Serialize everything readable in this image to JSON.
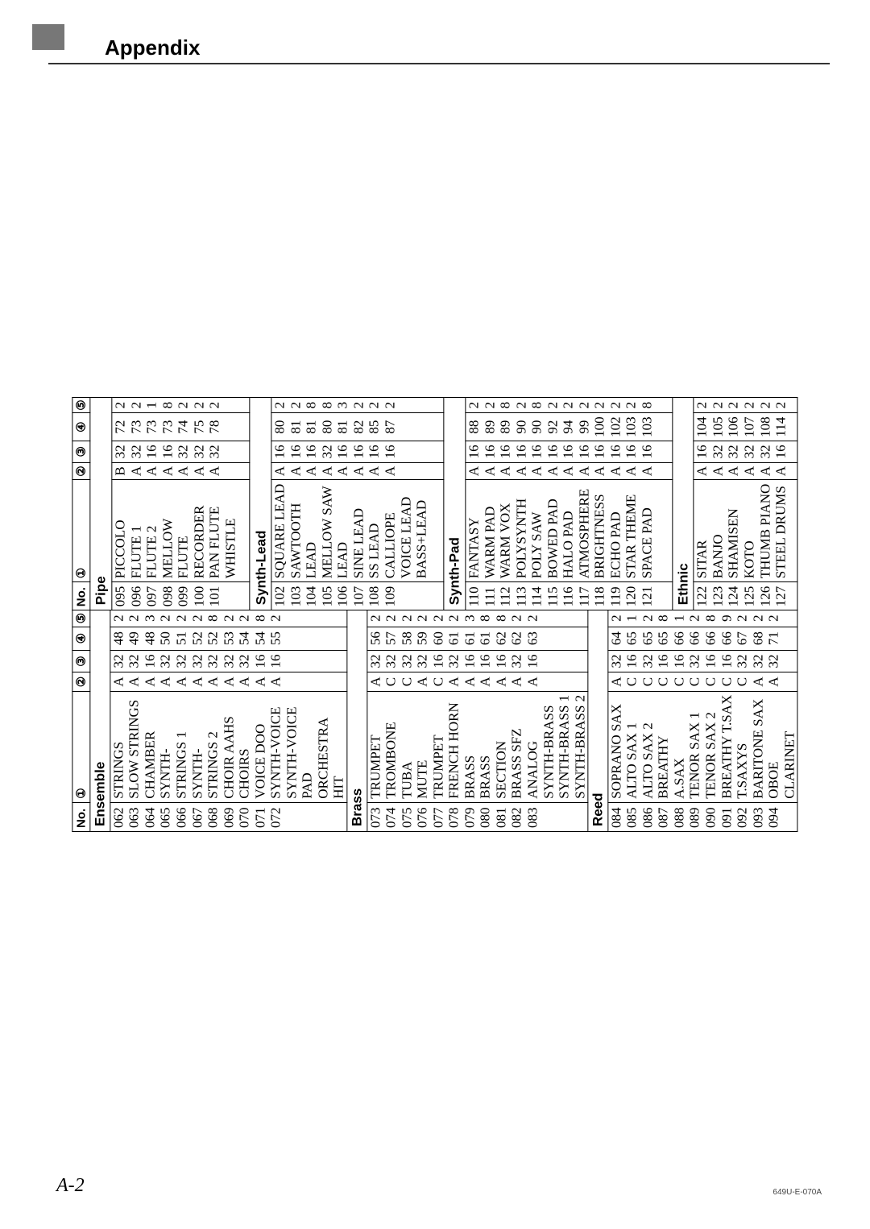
{
  "page_label": "A-2",
  "section_title": "Appendix",
  "footer_code": "649U-E-070A",
  "columns": {
    "no": "No.",
    "c1": "①",
    "c2": "②",
    "c3": "③",
    "c4": "④",
    "c5": "⑤"
  },
  "left_groups": [
    {
      "name": "Ensemble",
      "rows": [
        {
          "no": "062",
          "name": "STRINGS",
          "c2": "A",
          "c3": "32",
          "c4": "48",
          "c5": "2"
        },
        {
          "no": "063",
          "name": "SLOW STRINGS",
          "c2": "A",
          "c3": "32",
          "c4": "49",
          "c5": "2"
        },
        {
          "no": "064",
          "name": "CHAMBER",
          "c2": "A",
          "c3": "16",
          "c4": "48",
          "c5": "3"
        },
        {
          "no": "065",
          "name": "SYNTH-STRINGS 1",
          "c2": "A",
          "c3": "32",
          "c4": "50",
          "c5": "2"
        },
        {
          "no": "066",
          "name": "SYNTH-STRINGS 2",
          "c2": "A",
          "c3": "32",
          "c4": "51",
          "c5": "2"
        },
        {
          "no": "067",
          "name": "CHOIR AAHS",
          "c2": "A",
          "c3": "32",
          "c4": "52",
          "c5": "2"
        },
        {
          "no": "068",
          "name": "CHOIRS",
          "c2": "A",
          "c3": "32",
          "c4": "52",
          "c5": "8"
        },
        {
          "no": "069",
          "name": "VOICE DOO",
          "c2": "A",
          "c3": "32",
          "c4": "53",
          "c5": "2"
        },
        {
          "no": "070",
          "name": "SYNTH-VOICE",
          "c2": "A",
          "c3": "32",
          "c4": "54",
          "c5": "2"
        },
        {
          "no": "071",
          "name": "SYNTH-VOICE PAD",
          "c2": "A",
          "c3": "16",
          "c4": "54",
          "c5": "8"
        },
        {
          "no": "072",
          "name": "ORCHESTRA HIT",
          "c2": "A",
          "c3": "16",
          "c4": "55",
          "c5": "2"
        }
      ]
    },
    {
      "name": "Brass",
      "rows": [
        {
          "no": "073",
          "name": "TRUMPET",
          "c2": "A",
          "c3": "32",
          "c4": "56",
          "c5": "2"
        },
        {
          "no": "074",
          "name": "TROMBONE",
          "c2": "C",
          "c3": "32",
          "c4": "57",
          "c5": "2"
        },
        {
          "no": "075",
          "name": "TUBA",
          "c2": "C",
          "c3": "32",
          "c4": "58",
          "c5": "2"
        },
        {
          "no": "076",
          "name": "MUTE TRUMPET",
          "c2": "A",
          "c3": "32",
          "c4": "59",
          "c5": "2"
        },
        {
          "no": "077",
          "name": "FRENCH HORN",
          "c2": "C",
          "c3": "16",
          "c4": "60",
          "c5": "2"
        },
        {
          "no": "078",
          "name": "BRASS",
          "c2": "A",
          "c3": "32",
          "c4": "61",
          "c5": "2"
        },
        {
          "no": "079",
          "name": "BRASS SECTION",
          "c2": "A",
          "c3": "16",
          "c4": "61",
          "c5": "3"
        },
        {
          "no": "080",
          "name": "BRASS SFZ",
          "c2": "A",
          "c3": "16",
          "c4": "61",
          "c5": "8"
        },
        {
          "no": "081",
          "name": "ANALOG SYNTH-BRASS",
          "c2": "A",
          "c3": "16",
          "c4": "62",
          "c5": "8"
        },
        {
          "no": "082",
          "name": "SYNTH-BRASS 1",
          "c2": "A",
          "c3": "32",
          "c4": "62",
          "c5": "2"
        },
        {
          "no": "083",
          "name": "SYNTH-BRASS 2",
          "c2": "A",
          "c3": "16",
          "c4": "63",
          "c5": "2"
        }
      ]
    },
    {
      "name": "Reed",
      "rows": [
        {
          "no": "084",
          "name": "SOPRANO SAX",
          "c2": "A",
          "c3": "32",
          "c4": "64",
          "c5": "2"
        },
        {
          "no": "085",
          "name": "ALTO SAX 1",
          "c2": "C",
          "c3": "16",
          "c4": "65",
          "c5": "1"
        },
        {
          "no": "086",
          "name": "ALTO SAX 2",
          "c2": "C",
          "c3": "32",
          "c4": "65",
          "c5": "2"
        },
        {
          "no": "087",
          "name": "BREATHY A.SAX",
          "c2": "C",
          "c3": "16",
          "c4": "65",
          "c5": "8"
        },
        {
          "no": "088",
          "name": "TENOR SAX 1",
          "c2": "C",
          "c3": "16",
          "c4": "66",
          "c5": "1"
        },
        {
          "no": "089",
          "name": "TENOR SAX 2",
          "c2": "C",
          "c3": "32",
          "c4": "66",
          "c5": "2"
        },
        {
          "no": "090",
          "name": "BREATHY T.SAX",
          "c2": "C",
          "c3": "16",
          "c4": "66",
          "c5": "8"
        },
        {
          "no": "091",
          "name": "T.SAXYS",
          "c2": "C",
          "c3": "16",
          "c4": "66",
          "c5": "9"
        },
        {
          "no": "092",
          "name": "BARITONE SAX",
          "c2": "C",
          "c3": "32",
          "c4": "67",
          "c5": "2"
        },
        {
          "no": "093",
          "name": "OBOE",
          "c2": "A",
          "c3": "32",
          "c4": "68",
          "c5": "2"
        },
        {
          "no": "094",
          "name": "CLARINET",
          "c2": "A",
          "c3": "32",
          "c4": "71",
          "c5": "2"
        }
      ]
    }
  ],
  "right_groups": [
    {
      "name": "Pipe",
      "rows": [
        {
          "no": "095",
          "name": "PICCOLO",
          "c2": "B",
          "c3": "32",
          "c4": "72",
          "c5": "2"
        },
        {
          "no": "096",
          "name": "FLUTE 1",
          "c2": "A",
          "c3": "32",
          "c4": "73",
          "c5": "2"
        },
        {
          "no": "097",
          "name": "FLUTE 2",
          "c2": "A",
          "c3": "16",
          "c4": "73",
          "c5": "1"
        },
        {
          "no": "098",
          "name": "MELLOW FLUTE",
          "c2": "A",
          "c3": "16",
          "c4": "73",
          "c5": "8"
        },
        {
          "no": "099",
          "name": "RECORDER",
          "c2": "A",
          "c3": "32",
          "c4": "74",
          "c5": "2"
        },
        {
          "no": "100",
          "name": "PAN FLUTE",
          "c2": "A",
          "c3": "32",
          "c4": "75",
          "c5": "2"
        },
        {
          "no": "101",
          "name": "WHISTLE",
          "c2": "A",
          "c3": "32",
          "c4": "78",
          "c5": "2"
        }
      ]
    },
    {
      "name": "Synth-Lead",
      "rows": [
        {
          "no": "102",
          "name": "SQUARE LEAD",
          "c2": "A",
          "c3": "16",
          "c4": "80",
          "c5": "2"
        },
        {
          "no": "103",
          "name": "SAWTOOTH LEAD",
          "c2": "A",
          "c3": "16",
          "c4": "81",
          "c5": "2"
        },
        {
          "no": "104",
          "name": "MELLOW SAW LEAD",
          "c2": "A",
          "c3": "16",
          "c4": "81",
          "c5": "8"
        },
        {
          "no": "105",
          "name": "SINE LEAD",
          "c2": "A",
          "c3": "32",
          "c4": "80",
          "c5": "8"
        },
        {
          "no": "106",
          "name": "SS LEAD",
          "c2": "A",
          "c3": "16",
          "c4": "81",
          "c5": "3"
        },
        {
          "no": "107",
          "name": "CALLIOPE",
          "c2": "A",
          "c3": "16",
          "c4": "82",
          "c5": "2"
        },
        {
          "no": "108",
          "name": "VOICE LEAD",
          "c2": "A",
          "c3": "16",
          "c4": "85",
          "c5": "2"
        },
        {
          "no": "109",
          "name": "BASS+LEAD",
          "c2": "A",
          "c3": "16",
          "c4": "87",
          "c5": "2"
        }
      ]
    },
    {
      "name": "Synth-Pad",
      "rows": [
        {
          "no": "110",
          "name": "FANTASY",
          "c2": "A",
          "c3": "16",
          "c4": "88",
          "c5": "2"
        },
        {
          "no": "111",
          "name": "WARM PAD",
          "c2": "A",
          "c3": "16",
          "c4": "89",
          "c5": "2"
        },
        {
          "no": "112",
          "name": "WARM VOX",
          "c2": "A",
          "c3": "16",
          "c4": "89",
          "c5": "8"
        },
        {
          "no": "113",
          "name": "POLYSYNTH",
          "c2": "A",
          "c3": "16",
          "c4": "90",
          "c5": "2"
        },
        {
          "no": "114",
          "name": "POLY SAW",
          "c2": "A",
          "c3": "16",
          "c4": "90",
          "c5": "8"
        },
        {
          "no": "115",
          "name": "BOWED PAD",
          "c2": "A",
          "c3": "16",
          "c4": "92",
          "c5": "2"
        },
        {
          "no": "116",
          "name": "HALO PAD",
          "c2": "A",
          "c3": "16",
          "c4": "94",
          "c5": "2"
        },
        {
          "no": "117",
          "name": "ATMOSPHERE",
          "c2": "A",
          "c3": "16",
          "c4": "99",
          "c5": "2"
        },
        {
          "no": "118",
          "name": "BRIGHTNESS",
          "c2": "A",
          "c3": "16",
          "c4": "100",
          "c5": "2"
        },
        {
          "no": "119",
          "name": "ECHO PAD",
          "c2": "A",
          "c3": "16",
          "c4": "102",
          "c5": "2"
        },
        {
          "no": "120",
          "name": "STAR THEME",
          "c2": "A",
          "c3": "16",
          "c4": "103",
          "c5": "2"
        },
        {
          "no": "121",
          "name": "SPACE PAD",
          "c2": "A",
          "c3": "16",
          "c4": "103",
          "c5": "8"
        }
      ]
    },
    {
      "name": "Ethnic",
      "rows": [
        {
          "no": "122",
          "name": "SITAR",
          "c2": "A",
          "c3": "16",
          "c4": "104",
          "c5": "2"
        },
        {
          "no": "123",
          "name": "BANJO",
          "c2": "A",
          "c3": "32",
          "c4": "105",
          "c5": "2"
        },
        {
          "no": "124",
          "name": "SHAMISEN",
          "c2": "A",
          "c3": "32",
          "c4": "106",
          "c5": "2"
        },
        {
          "no": "125",
          "name": "KOTO",
          "c2": "A",
          "c3": "32",
          "c4": "107",
          "c5": "2"
        },
        {
          "no": "126",
          "name": "THUMB PIANO",
          "c2": "A",
          "c3": "32",
          "c4": "108",
          "c5": "2"
        },
        {
          "no": "127",
          "name": "STEEL DRUMS",
          "c2": "A",
          "c3": "16",
          "c4": "114",
          "c5": "2"
        }
      ]
    }
  ]
}
